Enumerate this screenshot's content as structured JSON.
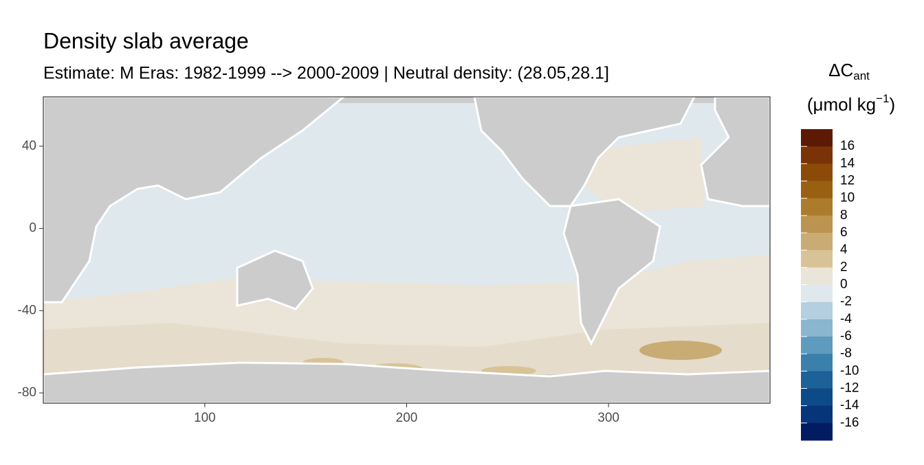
{
  "chart_data": {
    "type": "map",
    "title": "Density slab average",
    "subtitle": "Estimate: M Eras: 1982-1999 --> 2000-2009 | Neutral density: (28.05,28.1]",
    "xlim": [
      20,
      380
    ],
    "ylim": [
      -85,
      64
    ],
    "xticks": [
      100,
      200,
      300
    ],
    "yticks": [
      40,
      0,
      -40,
      -80
    ],
    "legend": {
      "title": {
        "symbol": "ΔC",
        "subscript": "ant",
        "unit": "(μmol kg",
        "superscript": "−1",
        "close": ")"
      },
      "range": [
        -18,
        18
      ],
      "colors": [
        "#5c1a04",
        "#7a3306",
        "#8c4a08",
        "#9a6011",
        "#ab7c2c",
        "#bb9450",
        "#c9ac74",
        "#d8c398",
        "#ebe4d8",
        "#dfe8ed",
        "#b3cfe0",
        "#8ab6cf",
        "#5f9abf",
        "#3b7fad",
        "#1c6198",
        "#0c4b88",
        "#07357a",
        "#021b63"
      ],
      "ticks": [
        16,
        14,
        12,
        10,
        8,
        6,
        4,
        2,
        0,
        -2,
        -4,
        -6,
        -8,
        -10,
        -12,
        -14,
        -16
      ]
    }
  }
}
